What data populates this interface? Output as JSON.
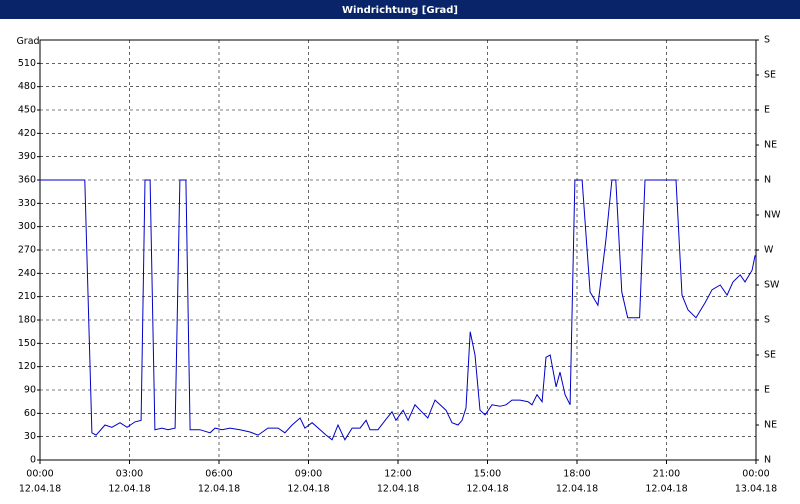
{
  "chart_data": {
    "type": "line",
    "title": "Windrichtung [Grad]",
    "ylabel": "Grad",
    "xlim": [
      0,
      24
    ],
    "xticks": [
      {
        "value": 0,
        "label": "00:00",
        "sublabel": "12.04.18"
      },
      {
        "value": 3,
        "label": "03:00",
        "sublabel": "12.04.18"
      },
      {
        "value": 6,
        "label": "06:00",
        "sublabel": "12.04.18"
      },
      {
        "value": 9,
        "label": "09:00",
        "sublabel": "12.04.18"
      },
      {
        "value": 12,
        "label": "12:00",
        "sublabel": "12.04.18"
      },
      {
        "value": 15,
        "label": "15:00",
        "sublabel": "12.04.18"
      },
      {
        "value": 18,
        "label": "18:00",
        "sublabel": "12.04.18"
      },
      {
        "value": 21,
        "label": "21:00",
        "sublabel": "12.04.18"
      },
      {
        "value": 24,
        "label": "00:00",
        "sublabel": "13.04.18"
      }
    ],
    "ylim": [
      0,
      540
    ],
    "yticks": [
      0,
      30,
      60,
      90,
      120,
      150,
      180,
      210,
      240,
      270,
      300,
      330,
      360,
      390,
      420,
      450,
      480,
      510
    ],
    "y2lim": [
      0,
      540
    ],
    "y2ticks": [
      {
        "value": 0,
        "label": "N"
      },
      {
        "value": 45,
        "label": "NE"
      },
      {
        "value": 90,
        "label": "E"
      },
      {
        "value": 135,
        "label": "SE"
      },
      {
        "value": 180,
        "label": "S"
      },
      {
        "value": 225,
        "label": "SW"
      },
      {
        "value": 270,
        "label": "W"
      },
      {
        "value": 315,
        "label": "NW"
      },
      {
        "value": 360,
        "label": "N"
      },
      {
        "value": 405,
        "label": "NE"
      },
      {
        "value": 450,
        "label": "E"
      },
      {
        "value": 495,
        "label": "SE"
      },
      {
        "value": 540,
        "label": "S"
      }
    ],
    "grid": true,
    "x": [
      0,
      1.5,
      1.74,
      1.88,
      2.18,
      2.41,
      2.68,
      2.92,
      3.18,
      3.39,
      3.52,
      3.69,
      3.85,
      4.09,
      4.29,
      4.53,
      4.69,
      4.89,
      5.03,
      5.36,
      5.7,
      5.87,
      6.1,
      6.37,
      6.7,
      7.04,
      7.31,
      7.64,
      7.98,
      8.21,
      8.45,
      8.72,
      8.88,
      9.12,
      9.39,
      9.59,
      9.79,
      9.99,
      10.22,
      10.46,
      10.73,
      10.93,
      11.06,
      11.33,
      11.57,
      11.8,
      11.93,
      12.17,
      12.34,
      12.57,
      12.74,
      13.0,
      13.24,
      13.41,
      13.61,
      13.81,
      14.01,
      14.15,
      14.28,
      14.42,
      14.58,
      14.75,
      14.92,
      15.15,
      15.42,
      15.62,
      15.82,
      16.09,
      16.36,
      16.49,
      16.66,
      16.83,
      16.96,
      17.1,
      17.3,
      17.43,
      17.6,
      17.77,
      17.93,
      18.17,
      18.44,
      18.7,
      18.97,
      19.17,
      19.3,
      19.5,
      19.7,
      20.1,
      20.28,
      21.32,
      21.52,
      21.72,
      21.99,
      22.29,
      22.53,
      22.8,
      23.03,
      23.23,
      23.47,
      23.63,
      23.87,
      23.97
    ],
    "series": [
      {
        "name": "Windrichtung",
        "color": "#0000c8",
        "values": [
          360,
          360,
          35,
          32,
          45,
          42,
          48,
          42,
          49,
          51,
          360,
          360,
          39,
          41,
          39,
          41,
          360,
          360,
          39,
          39,
          35,
          41,
          39,
          41,
          39,
          36,
          32,
          41,
          41,
          35,
          45,
          54,
          41,
          48,
          39,
          32,
          26,
          45,
          26,
          41,
          41,
          51,
          39,
          39,
          51,
          62,
          51,
          64,
          51,
          71,
          64,
          54,
          77,
          71,
          64,
          48,
          45,
          51,
          67,
          165,
          135,
          64,
          58,
          71,
          69,
          71,
          77,
          77,
          75,
          71,
          84,
          75,
          132,
          135,
          94,
          113,
          84,
          71,
          360,
          360,
          216,
          199,
          283,
          360,
          360,
          216,
          183,
          183,
          360,
          360,
          212,
          193,
          183,
          202,
          219,
          225,
          212,
          229,
          238,
          229,
          244,
          263
        ]
      }
    ]
  }
}
